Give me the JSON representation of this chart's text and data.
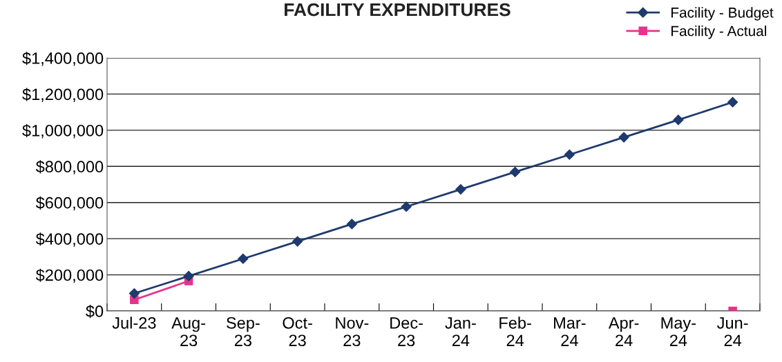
{
  "chart_data": {
    "type": "line",
    "title": "FACILITY EXPENDITURES",
    "categories": [
      "Jul-23",
      "Aug-\n23",
      "Sep-\n23",
      "Oct-\n23",
      "Nov-\n23",
      "Dec-\n23",
      "Jan-\n24",
      "Feb-\n24",
      "Mar-\n24",
      "Apr-\n24",
      "May-\n24",
      "Jun-\n24"
    ],
    "series": [
      {
        "name": "Facility - Budget",
        "color": "#1f3a6e",
        "marker": "diamond",
        "values": [
          97000,
          193000,
          289000,
          385000,
          481000,
          577000,
          673000,
          769000,
          865000,
          961000,
          1057000,
          1155000
        ]
      },
      {
        "name": "Facility - Actual",
        "color": "#e8338a",
        "marker": "square",
        "values": [
          62000,
          166000,
          null,
          null,
          null,
          null,
          null,
          null,
          null,
          null,
          null,
          0
        ]
      }
    ],
    "ylim": [
      0,
      1400000
    ],
    "yticks": [
      {
        "value": 0,
        "label": "$0"
      },
      {
        "value": 200000,
        "label": "$200,000"
      },
      {
        "value": 400000,
        "label": "$400,000"
      },
      {
        "value": 600000,
        "label": "$600,000"
      },
      {
        "value": 800000,
        "label": "$800,000"
      },
      {
        "value": 1000000,
        "label": "$1,000,000"
      },
      {
        "value": 1200000,
        "label": "$1,200,000"
      },
      {
        "value": 1400000,
        "label": "$1,400,000"
      }
    ],
    "grid": "y",
    "legend": "top right"
  }
}
